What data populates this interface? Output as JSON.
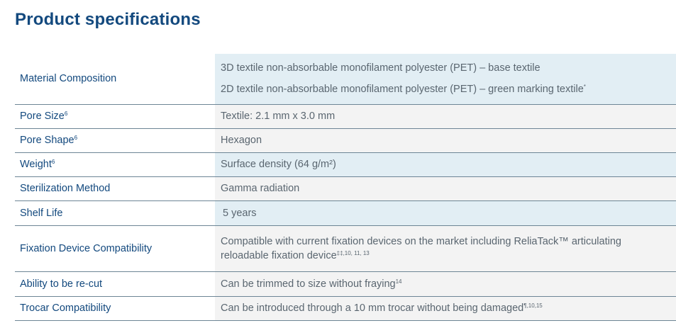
{
  "title": "Product specifications",
  "rows": [
    {
      "label": "Material Composition",
      "label_sup": "",
      "value_lines": [
        {
          "text": "3D textile non-absorbable monofilament polyester (PET) – base textile",
          "sup": ""
        },
        {
          "text": "2D textile non-absorbable monofilament polyester (PET) – green marking textile",
          "sup": "*"
        }
      ]
    },
    {
      "label": "Pore Size",
      "label_sup": "6",
      "value_lines": [
        {
          "text": "Textile: 2.1 mm x 3.0 mm",
          "sup": ""
        }
      ]
    },
    {
      "label": "Pore Shape",
      "label_sup": "6",
      "value_lines": [
        {
          "text": "Hexagon",
          "sup": ""
        }
      ]
    },
    {
      "label": "Weight",
      "label_sup": "6",
      "value_lines": [
        {
          "text": "Surface density (64 g/m²)",
          "sup": ""
        }
      ]
    },
    {
      "label": "Sterilization Method",
      "label_sup": "",
      "value_lines": [
        {
          "text": "Gamma radiation",
          "sup": ""
        }
      ]
    },
    {
      "label": "Shelf Life",
      "label_sup": "",
      "value_lines": [
        {
          "text": "5 years",
          "sup": ""
        }
      ]
    },
    {
      "label": "Fixation Device Compatibility",
      "label_sup": "",
      "value_lines": [
        {
          "text": "Compatible with current fixation devices on the market including ReliaTack™ articulating reloadable fixation device",
          "sup": "‡‡,10, 11, 13"
        }
      ]
    },
    {
      "label": "Ability to be re-cut",
      "label_sup": "",
      "value_lines": [
        {
          "text": "Can be trimmed to size without fraying",
          "sup": "14"
        }
      ]
    },
    {
      "label": "Trocar Compatibility",
      "label_sup": "",
      "value_lines": [
        {
          "text": "Can be introduced through a 10 mm trocar without being damaged",
          "sup": "¶,10,15"
        }
      ]
    }
  ]
}
